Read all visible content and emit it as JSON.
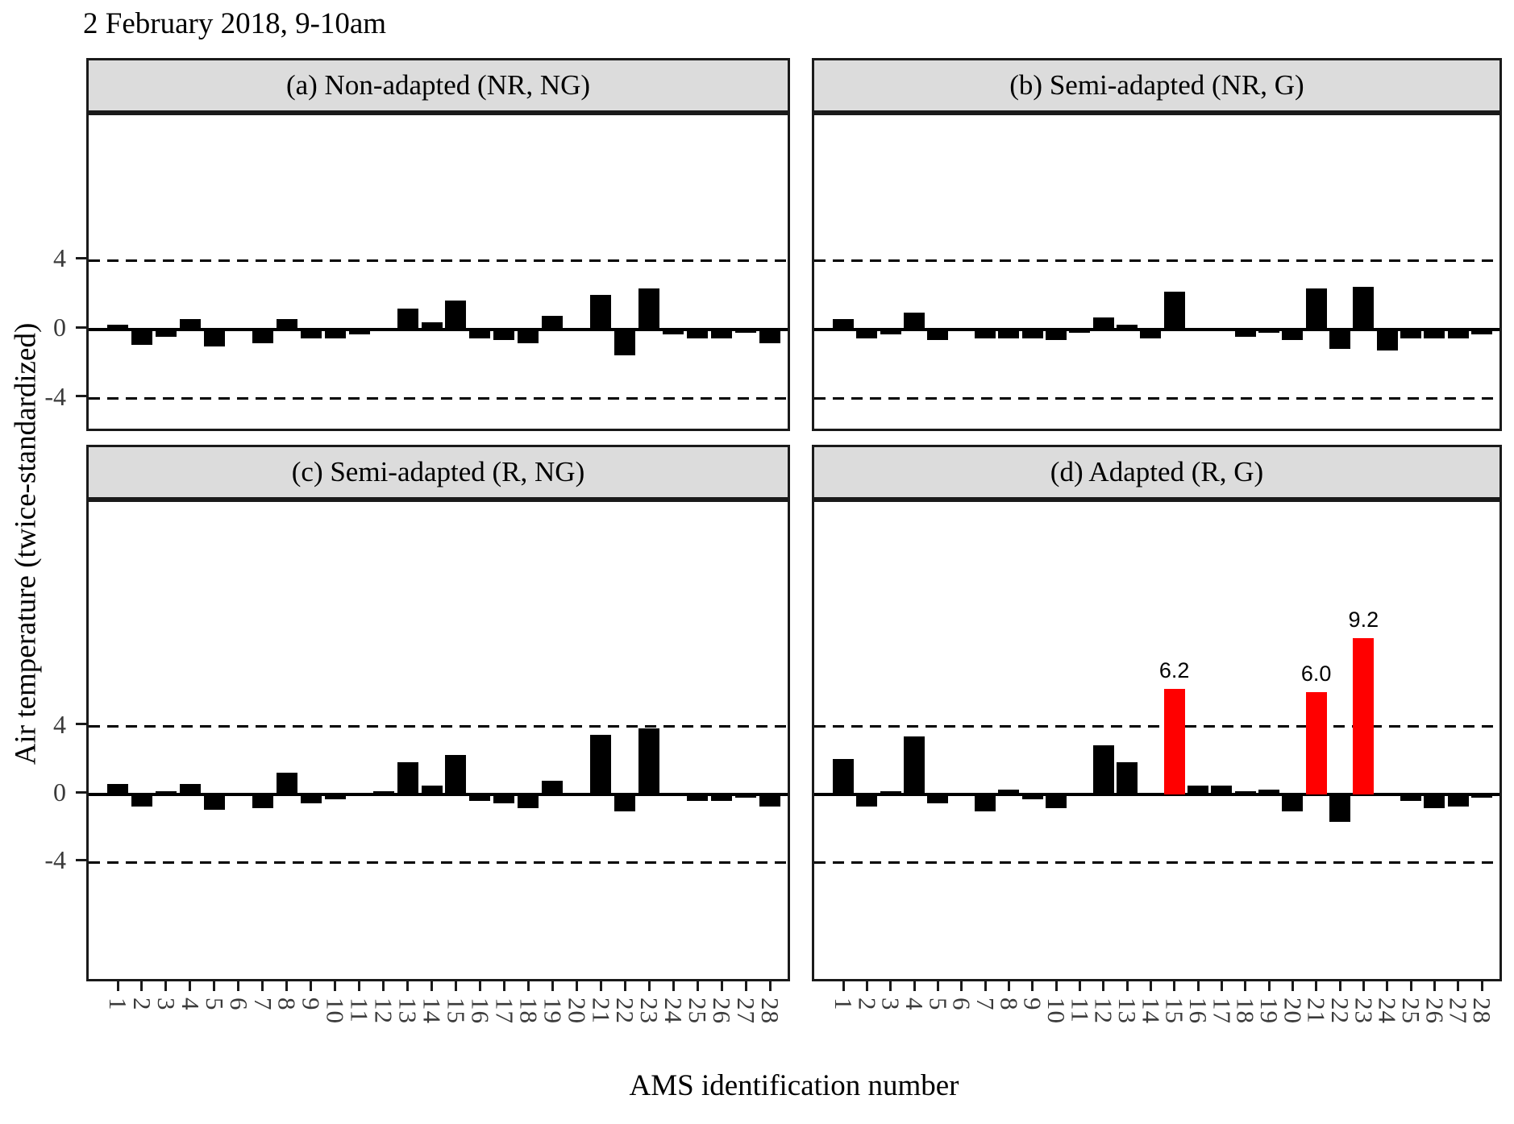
{
  "title": "2 February 2018, 9-10am",
  "xlabel": "AMS identification number",
  "ylabel": "Air temperature (twice-standardized)",
  "colors": {
    "bar": "#000000",
    "highlight_bar": "#ff0000",
    "header_bg": "#dcdcdc",
    "panel_border": "#1a1a1a",
    "tick_text": "#3a3a3a",
    "reference_line": "#000000"
  },
  "y_axis": {
    "tick_labels": [
      "4",
      "0",
      "-4"
    ],
    "tick_values": [
      4,
      0,
      -4
    ],
    "dashed_reference_values": [
      4,
      -4
    ]
  },
  "chart_data": [
    {
      "type": "bar",
      "panel": "a",
      "title": "(a) Non-adapted (NR, NG)",
      "categories": [
        "1",
        "2",
        "3",
        "4",
        "5",
        "6",
        "7",
        "8",
        "9",
        "10",
        "11",
        "12",
        "13",
        "14",
        "15",
        "16",
        "17",
        "18",
        "19",
        "20",
        "21",
        "22",
        "23",
        "24",
        "25",
        "26",
        "27",
        "28"
      ],
      "values": [
        0.3,
        -0.9,
        -0.4,
        0.6,
        -1.0,
        0.0,
        -0.8,
        0.6,
        -0.5,
        -0.5,
        -0.3,
        0.1,
        1.2,
        0.4,
        1.7,
        -0.5,
        -0.6,
        -0.8,
        0.8,
        0.0,
        2.0,
        -1.5,
        2.4,
        -0.3,
        -0.5,
        -0.5,
        -0.2,
        -0.8
      ],
      "highlights": [],
      "ylim": [
        -6,
        12.4
      ],
      "grid": "dashed lines at y=4 and y=-4 only"
    },
    {
      "type": "bar",
      "panel": "b",
      "title": "(b) Semi-adapted (NR, G)",
      "categories": [
        "1",
        "2",
        "3",
        "4",
        "5",
        "6",
        "7",
        "8",
        "9",
        "10",
        "11",
        "12",
        "13",
        "14",
        "15",
        "16",
        "17",
        "18",
        "19",
        "20",
        "21",
        "22",
        "23",
        "24",
        "25",
        "26",
        "27",
        "28"
      ],
      "values": [
        0.6,
        -0.5,
        -0.3,
        1.0,
        -0.6,
        0.0,
        -0.5,
        -0.5,
        -0.5,
        -0.6,
        -0.2,
        0.7,
        0.3,
        -0.5,
        2.2,
        0.0,
        0.0,
        -0.4,
        -0.2,
        -0.6,
        2.4,
        -1.1,
        2.5,
        -1.2,
        -0.5,
        -0.5,
        -0.5,
        -0.3
      ],
      "highlights": [],
      "ylim": [
        -6,
        12.4
      ],
      "grid": "dashed lines at y=4 and y=-4 only"
    },
    {
      "type": "bar",
      "panel": "c",
      "title": "(c) Semi-adapted (R, NG)",
      "categories": [
        "1",
        "2",
        "3",
        "4",
        "5",
        "6",
        "7",
        "8",
        "9",
        "10",
        "11",
        "12",
        "13",
        "14",
        "15",
        "16",
        "17",
        "18",
        "19",
        "20",
        "21",
        "22",
        "23",
        "24",
        "25",
        "26",
        "27",
        "28"
      ],
      "values": [
        0.6,
        -0.7,
        0.2,
        0.6,
        -0.9,
        0.0,
        -0.8,
        1.3,
        -0.5,
        -0.3,
        0.0,
        0.2,
        1.9,
        0.5,
        2.3,
        -0.4,
        -0.5,
        -0.8,
        0.8,
        0.1,
        3.5,
        -1.0,
        3.9,
        0.0,
        -0.4,
        -0.4,
        -0.2,
        -0.7
      ],
      "highlights": [],
      "ylim": [
        -11.1,
        17.2
      ],
      "grid": "dashed lines at y=4 and y=-4 only"
    },
    {
      "type": "bar",
      "panel": "d",
      "title": "(d) Adapted (R, G)",
      "categories": [
        "1",
        "2",
        "3",
        "4",
        "5",
        "6",
        "7",
        "8",
        "9",
        "10",
        "11",
        "12",
        "13",
        "14",
        "15",
        "16",
        "17",
        "18",
        "19",
        "20",
        "21",
        "22",
        "23",
        "24",
        "25",
        "26",
        "27",
        "28"
      ],
      "values": [
        2.1,
        -0.7,
        0.2,
        3.4,
        -0.5,
        0.0,
        -1.0,
        0.3,
        -0.3,
        -0.8,
        0.0,
        2.9,
        1.9,
        -0.1,
        6.2,
        0.5,
        0.5,
        0.2,
        0.3,
        -1.0,
        6.0,
        -1.6,
        9.2,
        0.0,
        -0.4,
        -0.8,
        -0.7,
        -0.2
      ],
      "highlights": [
        {
          "category": "15",
          "value": 6.2,
          "label": "6.2"
        },
        {
          "category": "21",
          "value": 6.0,
          "label": "6.0"
        },
        {
          "category": "23",
          "value": 9.2,
          "label": "9.2"
        }
      ],
      "ylim": [
        -11.1,
        17.2
      ],
      "grid": "dashed lines at y=4 and y=-4 only"
    }
  ]
}
